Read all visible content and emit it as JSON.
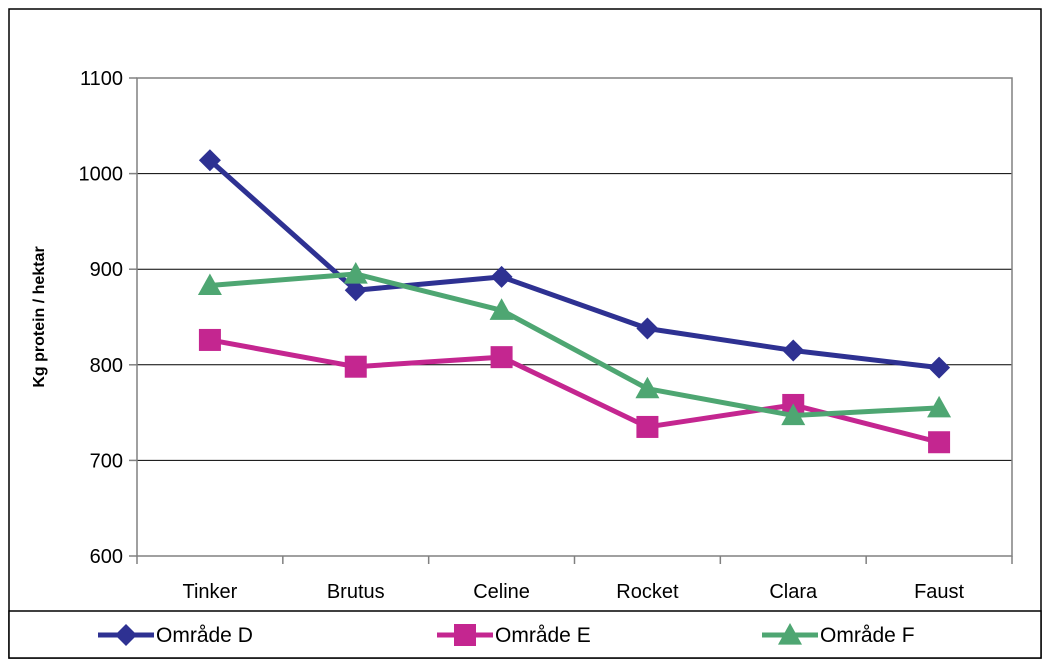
{
  "chart_data": {
    "type": "line",
    "title": "",
    "xlabel": "",
    "ylabel": "Kg protein / hektar",
    "categories": [
      "Tinker",
      "Brutus",
      "Celine",
      "Rocket",
      "Clara",
      "Faust"
    ],
    "ylim": [
      600,
      1100
    ],
    "yticks": [
      600,
      700,
      800,
      900,
      1000,
      1100
    ],
    "grid": true,
    "legend_position": "bottom",
    "series": [
      {
        "name": "Område D",
        "color": "#2E3192",
        "marker": "diamond",
        "values": [
          1014,
          878,
          892,
          838,
          815,
          797
        ]
      },
      {
        "name": "Område E",
        "color": "#C42690",
        "marker": "square",
        "values": [
          826,
          798,
          808,
          735,
          758,
          719
        ]
      },
      {
        "name": "Område F",
        "color": "#4EA672",
        "marker": "triangle",
        "values": [
          883,
          895,
          857,
          775,
          747,
          755
        ]
      }
    ]
  }
}
